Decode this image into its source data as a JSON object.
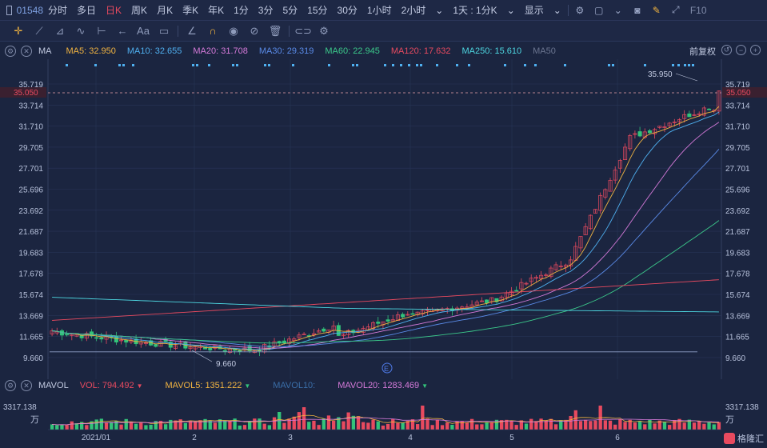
{
  "toolbar": {
    "code": "01548",
    "timeframes": [
      "分时",
      "多日",
      "日K",
      "周K",
      "月K",
      "季K",
      "年K",
      "1分",
      "3分",
      "5分",
      "15分",
      "30分",
      "1小时",
      "2小时",
      "1天 : 1分K",
      "显示"
    ],
    "active_timeframe": "日K",
    "f10_label": "F10"
  },
  "drawing_tools": {
    "text_tool_label": "Aa"
  },
  "ma_legend": {
    "name": "MA",
    "items": [
      {
        "label": "MA5: 32.950",
        "color": "#f0b341"
      },
      {
        "label": "MA10: 32.655",
        "color": "#4fb0f0"
      },
      {
        "label": "MA20: 31.708",
        "color": "#d57ad9"
      },
      {
        "label": "MA30: 29.319",
        "color": "#5a8be8"
      },
      {
        "label": "MA60: 22.945",
        "color": "#3bc98a"
      },
      {
        "label": "MA120: 17.632",
        "color": "#e84a5f"
      },
      {
        "label": "MA250: 15.610",
        "color": "#4dd6e0"
      },
      {
        "label": "MA50",
        "color": "#6b7590"
      }
    ],
    "fq_label": "前复权"
  },
  "price_axis": {
    "labels": [
      "35.719",
      "33.714",
      "31.710",
      "29.705",
      "27.701",
      "25.696",
      "23.692",
      "21.687",
      "19.683",
      "17.678",
      "15.674",
      "13.669",
      "11.665",
      "9.660"
    ],
    "current_price": "35.050",
    "high_marker": "35.950",
    "low_marker": "9.660"
  },
  "vol_legend": {
    "name": "MAVOL",
    "items": [
      {
        "label": "VOL: 794.492",
        "color": "#e84a5f",
        "arrow": "▼",
        "arrow_color": "#e84a5f"
      },
      {
        "label": "MAVOL5: 1351.222",
        "color": "#f0b341",
        "arrow": "▼",
        "arrow_color": "#33c37a"
      },
      {
        "label": "MAVOL10:",
        "color": "#3a6ea8",
        "arrow": "",
        "arrow_color": ""
      },
      {
        "label": "MAVOL20: 1283.469",
        "color": "#d57ad9",
        "arrow": "▼",
        "arrow_color": "#33c37a"
      }
    ],
    "axis_top": "3317.138",
    "axis_unit": "万"
  },
  "x_axis": {
    "labels": [
      "2021/01",
      "2",
      "3",
      "4",
      "5",
      "6"
    ]
  },
  "watermark": "格隆汇",
  "colors": {
    "background": "#1b2540",
    "up": "#e84a5f",
    "down": "#33c37a",
    "grid": "#283457"
  }
}
